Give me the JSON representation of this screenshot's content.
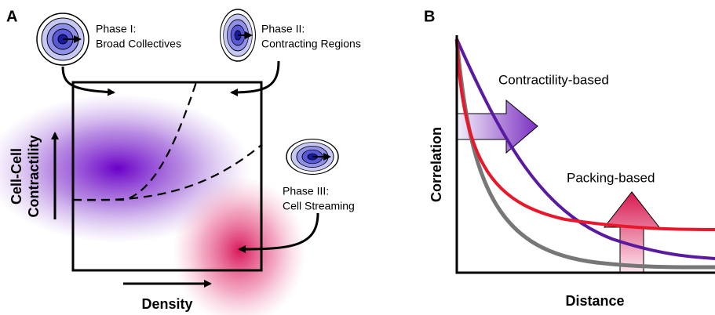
{
  "panel_a": {
    "label": "A",
    "phases": [
      {
        "title": "Phase I:",
        "subtitle": "Broad Collectives"
      },
      {
        "title": "Phase II:",
        "subtitle": "Contracting Regions"
      },
      {
        "title": "Phase III:",
        "subtitle": "Cell Streaming"
      }
    ],
    "y_axis": [
      "Cell-Cell",
      "Contractility"
    ],
    "x_axis": "Density"
  },
  "panel_b": {
    "label": "B",
    "y_axis": "Correlation",
    "x_axis": "Distance",
    "annotations": [
      "Contractility-based",
      "Packing-based"
    ]
  }
}
